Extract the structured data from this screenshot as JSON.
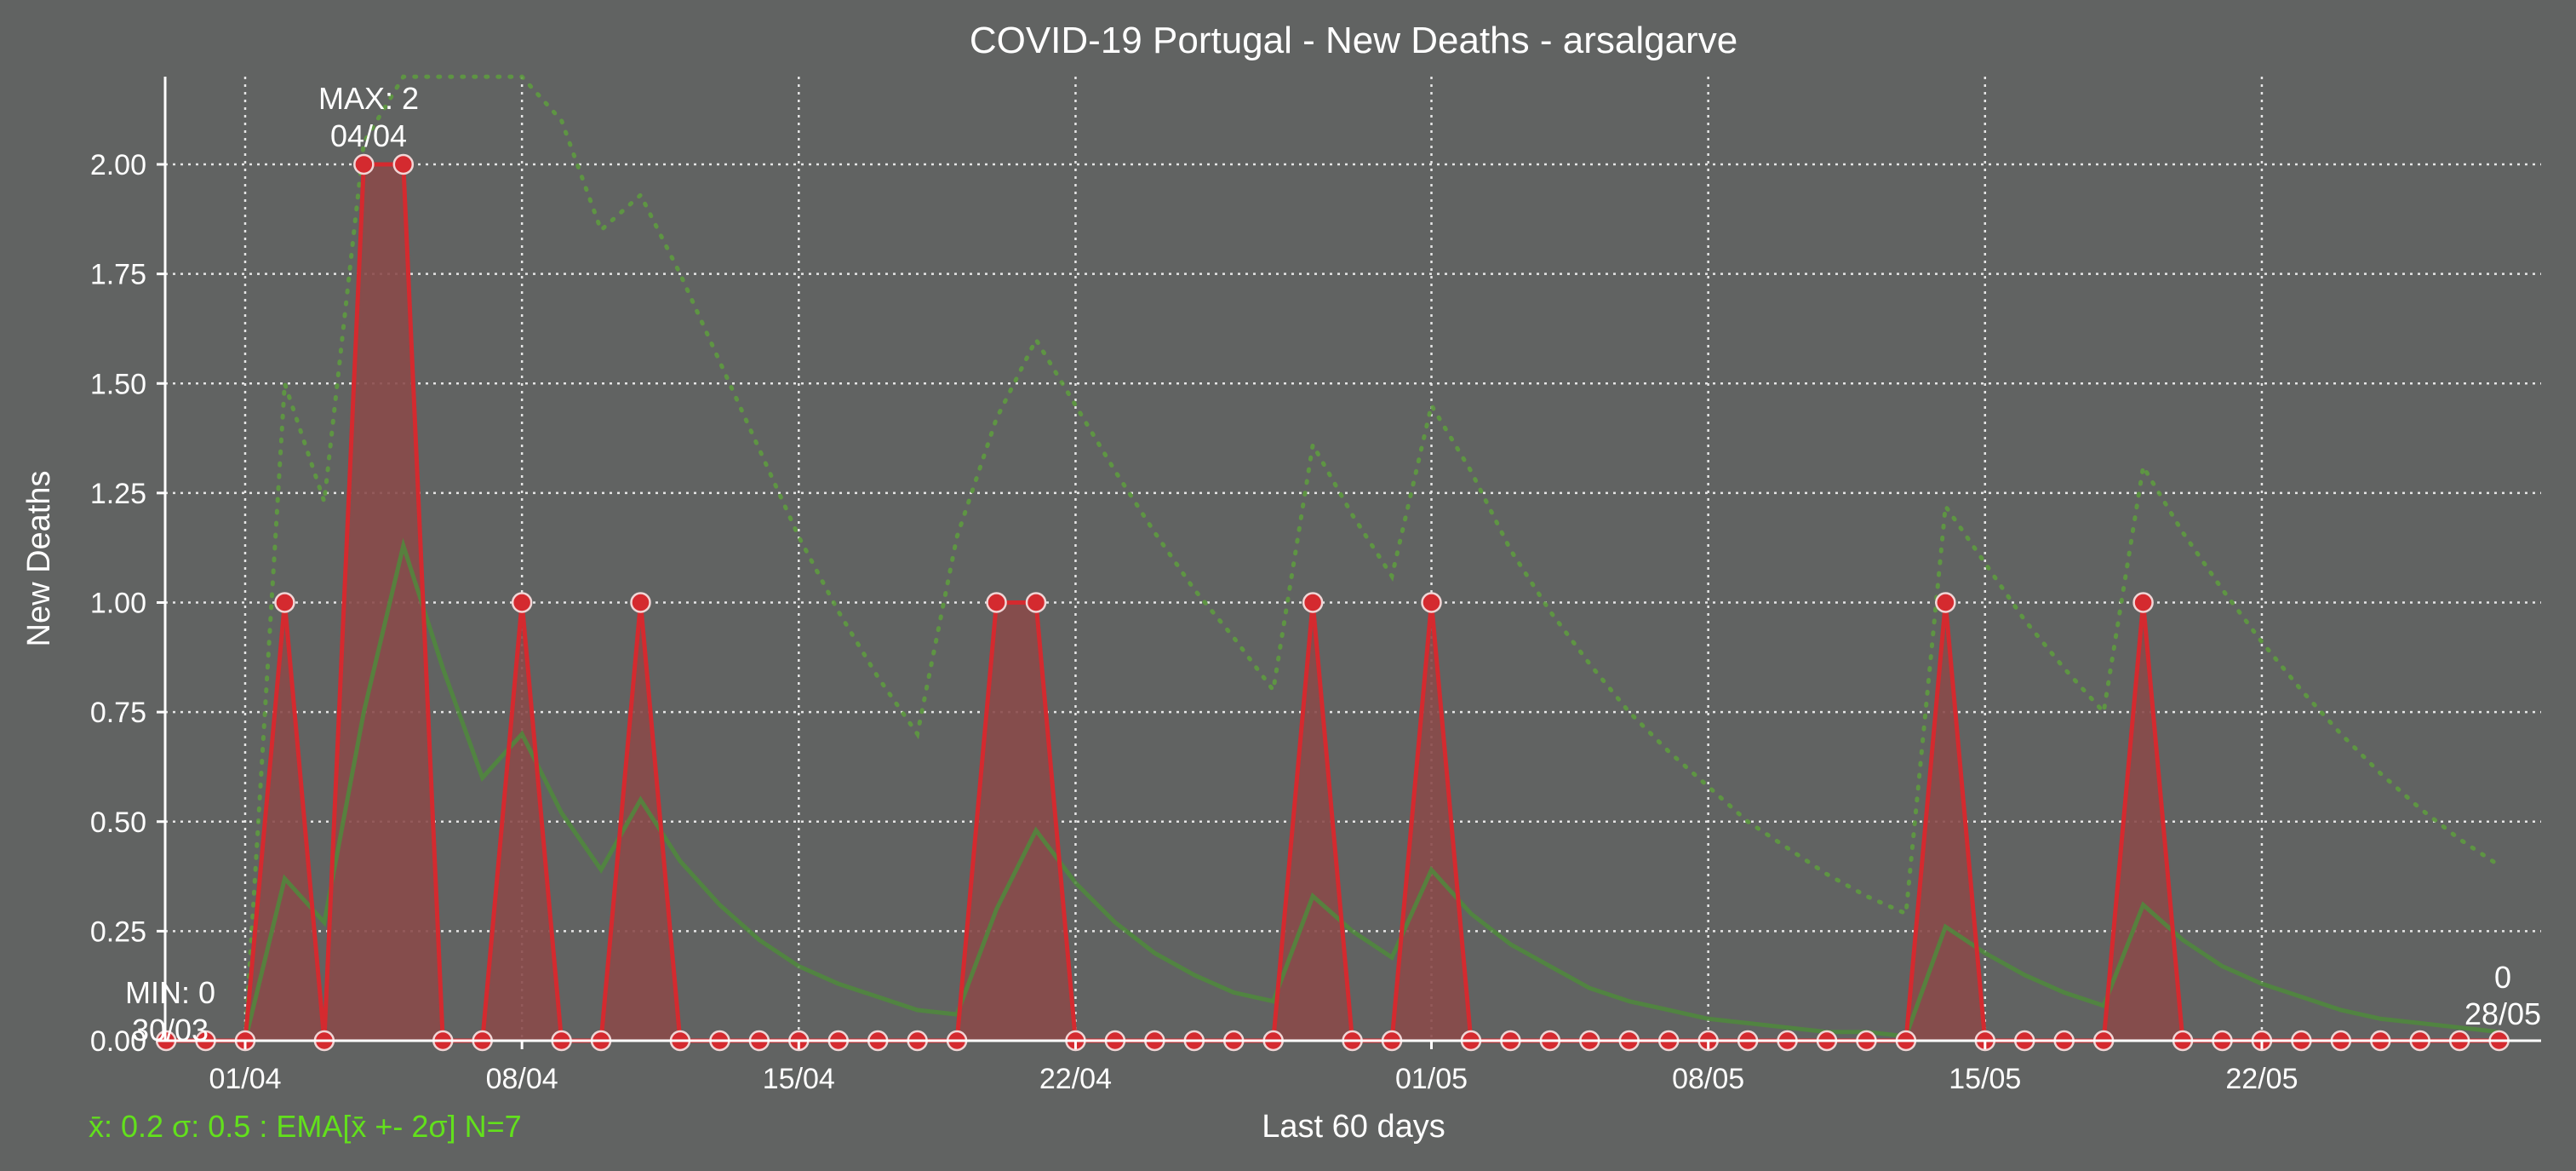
{
  "chart_data": {
    "type": "line",
    "title": "COVID-19 Portugal - New Deaths - arsalgarve",
    "xlabel": "Last 60 days",
    "ylabel": "New Deaths",
    "ylim": [
      0,
      2.2
    ],
    "grid": true,
    "y_ticks": [
      "0.00",
      "0.25",
      "0.50",
      "0.75",
      "1.00",
      "1.25",
      "1.50",
      "1.75",
      "2.00"
    ],
    "x_ticks": [
      {
        "label": "01/04",
        "day": 2
      },
      {
        "label": "08/04",
        "day": 9
      },
      {
        "label": "15/04",
        "day": 16
      },
      {
        "label": "22/04",
        "day": 23
      },
      {
        "label": "01/05",
        "day": 32
      },
      {
        "label": "08/05",
        "day": 39
      },
      {
        "label": "15/05",
        "day": 46
      },
      {
        "label": "22/05",
        "day": 53
      }
    ],
    "start_date": "30/03",
    "end_date": "28/05",
    "series": [
      {
        "values": [
          0,
          0,
          0,
          1,
          0,
          2,
          2,
          0,
          0,
          1,
          0,
          0,
          1,
          0,
          0,
          0,
          0,
          0,
          0,
          0,
          0,
          1,
          1,
          0,
          0,
          0,
          0,
          0,
          0,
          1,
          0,
          0,
          1,
          0,
          0,
          0,
          0,
          0,
          0,
          0,
          0,
          0,
          0,
          0,
          0,
          1,
          0,
          0,
          0,
          0,
          1,
          0,
          0,
          0,
          0,
          0,
          0,
          0,
          0,
          0
        ],
        "color": "#d42a2f"
      },
      {
        "values": [
          0,
          0,
          0,
          0.37,
          0.27,
          0.75,
          1.13,
          0.85,
          0.6,
          0.7,
          0.52,
          0.39,
          0.55,
          0.41,
          0.31,
          0.23,
          0.17,
          0.13,
          0.1,
          0.07,
          0.06,
          0.3,
          0.48,
          0.36,
          0.27,
          0.2,
          0.15,
          0.11,
          0.09,
          0.33,
          0.25,
          0.19,
          0.39,
          0.29,
          0.22,
          0.17,
          0.12,
          0.09,
          0.07,
          0.05,
          0.04,
          0.03,
          0.02,
          0.02,
          0.01,
          0.26,
          0.2,
          0.15,
          0.11,
          0.08,
          0.31,
          0.23,
          0.17,
          0.13,
          0.1,
          0.07,
          0.05,
          0.04,
          0.03,
          0.02
        ],
        "color": "#4f8a3c"
      },
      {
        "values": [
          0,
          0,
          0,
          1.5,
          1.23,
          2.05,
          2.3,
          2.25,
          2.2,
          2.2,
          2.1,
          1.85,
          1.93,
          1.75,
          1.55,
          1.35,
          1.15,
          0.98,
          0.83,
          0.7,
          1.15,
          1.42,
          1.6,
          1.45,
          1.3,
          1.16,
          1.03,
          0.92,
          0.8,
          1.36,
          1.2,
          1.06,
          1.45,
          1.3,
          1.12,
          0.98,
          0.86,
          0.75,
          0.66,
          0.58,
          0.5,
          0.44,
          0.38,
          0.33,
          0.29,
          1.22,
          1.09,
          0.96,
          0.85,
          0.75,
          1.31,
          1.16,
          1.03,
          0.91,
          0.8,
          0.7,
          0.61,
          0.53,
          0.46,
          0.4
        ],
        "color": "#5e9a40"
      }
    ],
    "annotations": {
      "max_label": "MAX: 2",
      "max_date": "04/04",
      "min_label": "MIN: 0",
      "min_date": "30/03",
      "last_value": "0",
      "last_date": "28/05"
    },
    "stats_text": "x̄: 0.2 σ: 0.5 : EMA[x̄ +- 2σ] N=7"
  }
}
